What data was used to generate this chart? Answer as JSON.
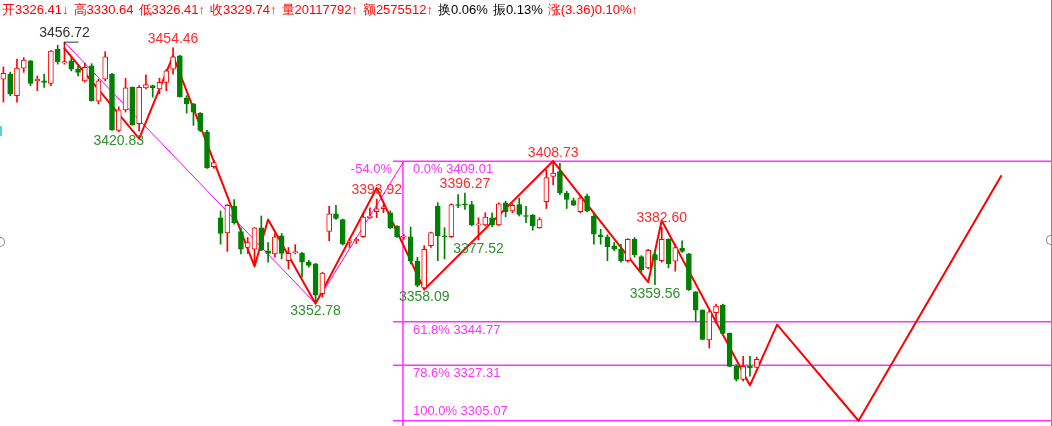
{
  "chart_data": {
    "type": "candlestick",
    "title": "开3326.41↓ 高3330.64 低3326.41↑ 收3329.74↑ 量20117792↑ 额2575512↑ 换0.06% 振0.13% 涨(3.36)0.10%↑",
    "categories": [
      null,
      null,
      null,
      null,
      null,
      null,
      null,
      null,
      null,
      null,
      null,
      null,
      null,
      null,
      null,
      null,
      null,
      null,
      null,
      null,
      null,
      null,
      null,
      null,
      null,
      null,
      null,
      null,
      null,
      null,
      null,
      null,
      null,
      null,
      null,
      null,
      null,
      null,
      null,
      null,
      null,
      null,
      null,
      null,
      null,
      null,
      null,
      null,
      null,
      null,
      null,
      null,
      null,
      null,
      null,
      null,
      null,
      null,
      null,
      null,
      null,
      null,
      null,
      null,
      null,
      null,
      null,
      null,
      null,
      null,
      null,
      null,
      null,
      null,
      null,
      null,
      null,
      null,
      null,
      null,
      null,
      null,
      null,
      null,
      null,
      null,
      null,
      null,
      null,
      null,
      null,
      null,
      null,
      null,
      null,
      null,
      null,
      null,
      null,
      null,
      null,
      null,
      null,
      null,
      null,
      null,
      null,
      null,
      null,
      null,
      null,
      null,
      null,
      null,
      null,
      null,
      null,
      null,
      null,
      null,
      null,
      null,
      null,
      null,
      null,
      null,
      null,
      null,
      null,
      null,
      null,
      null,
      null,
      null,
      null,
      null,
      null,
      null,
      null,
      null,
      null,
      null,
      null,
      null,
      null,
      null,
      null,
      null,
      null,
      null,
      null,
      null,
      null,
      null,
      null
    ],
    "ohlc": [
      [
        3441.9,
        3446.8,
        3432.7,
        3444.2
      ],
      [
        3443.9,
        3444.7,
        3435.2,
        3436.0
      ],
      [
        3435.3,
        3449.9,
        3432.7,
        3446.3
      ],
      [
        3446.3,
        3450.5,
        3444.6,
        3449.5
      ],
      [
        3449.2,
        3449.4,
        3439.3,
        3440.2
      ],
      [
        3441.2,
        3443.2,
        3437.3,
        3441.9
      ],
      [
        3441.2,
        3443.9,
        3438.6,
        3440.6
      ],
      [
        3440.2,
        3453.3,
        3439.3,
        3453.1
      ],
      [
        3453.8,
        3455.5,
        3447.9,
        3448.9
      ],
      [
        3448.4,
        3456.72,
        3447.9,
        3448.9
      ],
      [
        3449.2,
        3450.5,
        3445.2,
        3445.9
      ],
      [
        3445.9,
        3447.2,
        3443.2,
        3444.6
      ],
      [
        3441.2,
        3448.3,
        3440.7,
        3446.6
      ],
      [
        3447.2,
        3448.1,
        3433.1,
        3433.3
      ],
      [
        3433.1,
        3441.9,
        3432.0,
        3441.2
      ],
      [
        3441.9,
        3452.9,
        3441.2,
        3450.8
      ],
      [
        3443.9,
        3444.2,
        3421.4,
        3421.6
      ],
      [
        3421.4,
        3430.8,
        3420.83,
        3429.6
      ],
      [
        3429.6,
        3442.2,
        3428.7,
        3438.4
      ],
      [
        3438.6,
        3438.8,
        3423.4,
        3423.6
      ],
      [
        3424.1,
        3439.3,
        3421.1,
        3438.6
      ],
      [
        3438.4,
        3443.6,
        3438.0,
        3439.7
      ],
      [
        3439.3,
        3439.5,
        3434.7,
        3438.4
      ],
      [
        3438.0,
        3442.3,
        3436.0,
        3440.6
      ],
      [
        3440.6,
        3445.8,
        3437.3,
        3445.2
      ],
      [
        3445.9,
        3454.46,
        3443.9,
        3450.8
      ],
      [
        3451.2,
        3451.4,
        3434.7,
        3434.9
      ],
      [
        3434.4,
        3435.3,
        3428.3,
        3432.0
      ],
      [
        3432.0,
        3432.2,
        3423.4,
        3428.7
      ],
      [
        3428.3,
        3428.5,
        3420.9,
        3421.4
      ],
      [
        3420.8,
        3421.4,
        3406.2,
        3406.4
      ],
      [
        3406.9,
        3409.4,
        3406.2,
        3408.5
      ],
      [
        3386.4,
        3389.1,
        3375.8,
        3380.1
      ],
      [
        3380.3,
        3391.7,
        3372.9,
        3391.4
      ],
      [
        3391.0,
        3393.7,
        3383.8,
        3384.4
      ],
      [
        3380.9,
        3382.4,
        3371.9,
        3373.8
      ],
      [
        3374.5,
        3378.5,
        3372.1,
        3376.5
      ],
      [
        3373.8,
        3382.5,
        3367.9,
        3382.4
      ],
      [
        3382.4,
        3387.1,
        3373.2,
        3373.4
      ],
      [
        3373.2,
        3376.5,
        3368.6,
        3372.1
      ],
      [
        3371.9,
        3380.1,
        3370.6,
        3378.8
      ],
      [
        3379.2,
        3380.1,
        3369.9,
        3372.1
      ],
      [
        3369.2,
        3374.5,
        3365.9,
        3372.1
      ],
      [
        3372.4,
        3375.6,
        3371.9,
        3372.9
      ],
      [
        3372.1,
        3372.5,
        3362.6,
        3368.6
      ],
      [
        3368.6,
        3369.4,
        3366.6,
        3367.3
      ],
      [
        3367.9,
        3368.1,
        3352.78,
        3355.4
      ],
      [
        3356.0,
        3364.6,
        3354.7,
        3364.2
      ],
      [
        3380.9,
        3391.0,
        3377.2,
        3388.0
      ],
      [
        3388.0,
        3391.4,
        3385.7,
        3386.1
      ],
      [
        3385.7,
        3385.9,
        3375.5,
        3375.8
      ],
      [
        3376.5,
        3378.2,
        3374.5,
        3377.2
      ],
      [
        3377.2,
        3378.5,
        3376.1,
        3377.8
      ],
      [
        3378.8,
        3388.4,
        3378.5,
        3386.7
      ],
      [
        3386.4,
        3390.4,
        3386.1,
        3387.1
      ],
      [
        3388.8,
        3393.92,
        3386.4,
        3390.0
      ],
      [
        3390.0,
        3391.6,
        3388.4,
        3390.8
      ],
      [
        3388.4,
        3389.2,
        3382.0,
        3382.4
      ],
      [
        3383.1,
        3383.3,
        3378.5,
        3378.7
      ],
      [
        3378.6,
        3379.7,
        3377.7,
        3378.9
      ],
      [
        3378.8,
        3382.7,
        3367.9,
        3369.0
      ],
      [
        3369.0,
        3370.6,
        3358.7,
        3359.3
      ],
      [
        3358.3,
        3375.2,
        3358.09,
        3373.8
      ],
      [
        3375.2,
        3380.7,
        3374.5,
        3380.5
      ],
      [
        3391.0,
        3392.4,
        3369.2,
        3379.2
      ],
      [
        3379.2,
        3382.4,
        3369.9,
        3378.8
      ],
      [
        3378.8,
        3392.0,
        3378.5,
        3391.7
      ],
      [
        3391.7,
        3395.7,
        3390.4,
        3391.3
      ],
      [
        3392.0,
        3396.27,
        3389.7,
        3391.4
      ],
      [
        3391.7,
        3393.0,
        3383.1,
        3383.5
      ],
      [
        3383.5,
        3386.4,
        3377.52,
        3384.0
      ],
      [
        3383.5,
        3388.4,
        3383.1,
        3386.7
      ],
      [
        3386.4,
        3388.4,
        3382.8,
        3383.5
      ],
      [
        3383.5,
        3392.4,
        3383.2,
        3392.0
      ],
      [
        3392.4,
        3393.0,
        3386.8,
        3388.8
      ],
      [
        3389.1,
        3392.0,
        3388.4,
        3391.4
      ],
      [
        3391.7,
        3394.3,
        3387.1,
        3387.7
      ],
      [
        3387.3,
        3391.0,
        3384.4,
        3386.9
      ],
      [
        3387.5,
        3387.7,
        3381.4,
        3383.1
      ],
      [
        3382.4,
        3386.4,
        3382.2,
        3385.7
      ],
      [
        3392.8,
        3405.6,
        3390.1,
        3402.5
      ],
      [
        3402.9,
        3408.73,
        3399.6,
        3404.3
      ],
      [
        3404.9,
        3408.2,
        3395.7,
        3396.3
      ],
      [
        3396.3,
        3397.0,
        3390.1,
        3393.7
      ],
      [
        3393.3,
        3394.3,
        3391.2,
        3391.4
      ],
      [
        3388.8,
        3395.5,
        3388.4,
        3394.3
      ],
      [
        3395.1,
        3395.9,
        3388.8,
        3389.1
      ],
      [
        3387.1,
        3388.4,
        3375.8,
        3379.8
      ],
      [
        3379.6,
        3381.8,
        3375.8,
        3378.8
      ],
      [
        3378.8,
        3379.6,
        3369.2,
        3374.8
      ],
      [
        3375.2,
        3376.5,
        3373.2,
        3373.8
      ],
      [
        3373.8,
        3375.8,
        3368.6,
        3369.2
      ],
      [
        3369.2,
        3378.0,
        3368.6,
        3377.8
      ],
      [
        3377.8,
        3378.5,
        3370.6,
        3371.6
      ],
      [
        3370.8,
        3371.2,
        3364.6,
        3365.5
      ],
      [
        3366.3,
        3373.8,
        3365.9,
        3373.4
      ],
      [
        3371.6,
        3373.4,
        3359.56,
        3369.5
      ],
      [
        3369.2,
        3382.6,
        3368.6,
        3377.8
      ],
      [
        3377.8,
        3378.0,
        3366.3,
        3367.9
      ],
      [
        3369.0,
        3375.8,
        3365.0,
        3374.5
      ],
      [
        3374.2,
        3377.2,
        3372.5,
        3372.9
      ],
      [
        3371.9,
        3372.1,
        3357.3,
        3357.6
      ],
      [
        3356.7,
        3356.9,
        3344.8,
        3349.4
      ],
      [
        3349.4,
        3349.6,
        3337.5,
        3337.7
      ],
      [
        3337.5,
        3349.4,
        3334.2,
        3348.7
      ],
      [
        3348.4,
        3351.8,
        3344.1,
        3351.0
      ],
      [
        3351.4,
        3351.8,
        3339.9,
        3340.1
      ],
      [
        3340.1,
        3340.3,
        3326.7,
        3326.9
      ],
      [
        3326.9,
        3327.6,
        3321.0,
        3321.7
      ],
      [
        3321.7,
        3330.9,
        3321.0,
        3326.9
      ],
      [
        3326.9,
        3330.9,
        3323.0,
        3326.3
      ],
      [
        3326.41,
        3330.64,
        3326.41,
        3329.74
      ],
      null,
      null,
      null,
      null,
      null,
      null,
      null,
      null,
      null,
      null,
      null,
      null,
      null,
      null,
      null,
      null,
      null,
      null,
      null,
      null,
      null,
      null,
      null,
      null,
      null,
      null,
      null,
      null,
      null,
      null,
      null,
      null,
      null,
      null,
      null,
      null,
      null,
      null,
      null,
      null,
      null,
      null,
      null
    ],
    "colors": [
      "#ff0000",
      "#008000",
      "#ff0000",
      "#ff0000",
      "#008000",
      "#ff0000",
      "#008000",
      "#ff0000",
      "#008000",
      "#ff0000",
      "#008000",
      "#008000",
      "#ff0000",
      "#008000",
      "#ff0000",
      "#ff0000",
      "#008000",
      "#ff0000",
      "#ff0000",
      "#008000",
      "#ff0000",
      "#ff0000",
      "#008000",
      "#ff0000",
      "#ff0000",
      "#ff0000",
      "#008000",
      "#008000",
      "#008000",
      "#008000",
      "#008000",
      "#ff0000",
      "#008000",
      "#ff0000",
      "#008000",
      "#008000",
      "#ff0000",
      "#ff0000",
      "#008000",
      "#008000",
      "#ff0000",
      "#008000",
      "#ff0000",
      "#ff0000",
      "#008000",
      "#008000",
      "#008000",
      "#ff0000",
      "#ff0000",
      "#008000",
      "#008000",
      "#ff0000",
      "#ff0000",
      "#ff0000",
      "#ff0000",
      "#ff0000",
      "#ff0000",
      "#008000",
      "#008000",
      "#ff0000",
      "#008000",
      "#008000",
      "#ff0000",
      "#ff0000",
      "#008000",
      "#008000",
      "#ff0000",
      "#008000",
      "#008000",
      "#008000",
      "#ff0000",
      "#ff0000",
      "#008000",
      "#ff0000",
      "#008000",
      "#ff0000",
      "#008000",
      "#008000",
      "#008000",
      "#ff0000",
      "#ff0000",
      "#ff0000",
      "#008000",
      "#008000",
      "#008000",
      "#ff0000",
      "#008000",
      "#008000",
      "#008000",
      "#008000",
      "#008000",
      "#008000",
      "#ff0000",
      "#008000",
      "#008000",
      "#ff0000",
      "#008000",
      "#ff0000",
      "#008000",
      "#ff0000",
      "#008000",
      "#008000",
      "#008000",
      "#008000",
      "#ff0000",
      "#ff0000",
      "#008000",
      "#008000",
      "#008000",
      "#ff0000",
      "#008000",
      "#ff0000",
      null,
      null,
      null,
      null,
      null,
      null,
      null,
      null,
      null,
      null,
      null,
      null,
      null,
      null,
      null,
      null,
      null,
      null,
      null,
      null,
      null,
      null,
      null,
      null,
      null,
      null,
      null,
      null,
      null,
      null,
      null,
      null,
      null,
      null,
      null,
      null,
      null,
      null,
      null,
      null,
      null,
      null,
      null
    ],
    "series": [
      {
        "type": "line",
        "color": "#ff0000",
        "values": [
          null,
          null,
          null,
          null,
          null,
          null,
          null,
          null,
          null,
          3454.2,
          null,
          null,
          null,
          null,
          null,
          null,
          null,
          null,
          null,
          null,
          3418.1,
          null,
          null,
          null,
          null,
          3451.2,
          null,
          null,
          null,
          null,
          null,
          null,
          null,
          null,
          null,
          null,
          null,
          3366.9,
          null,
          3385.7,
          null,
          null,
          null,
          null,
          null,
          null,
          3352.0,
          null,
          null,
          null,
          null,
          null,
          null,
          null,
          null,
          3398.3,
          null,
          null,
          null,
          null,
          null,
          null,
          3357.6,
          null,
          null,
          null,
          null,
          null,
          null,
          null,
          null,
          null,
          null,
          null,
          null,
          null,
          null,
          null,
          null,
          null,
          null,
          3409.1,
          null,
          null,
          null,
          null,
          null,
          null,
          null,
          null,
          null,
          null,
          null,
          null,
          null,
          3360.6,
          null,
          3385.3,
          null,
          null,
          null,
          null,
          null,
          null,
          null,
          null,
          null,
          null,
          null,
          null,
          3319.3,
          null,
          null,
          null,
          3343.6,
          null,
          null,
          null,
          null,
          null,
          null,
          null,
          null,
          null,
          null,
          null,
          3305.1,
          null,
          null,
          null,
          null,
          null,
          null,
          null,
          null,
          null,
          null,
          null,
          null,
          null,
          null,
          null,
          null,
          null,
          null,
          null,
          null,
          3403.1,
          null,
          null,
          null,
          null,
          null,
          null,
          null
        ]
      },
      {
        "type": "line",
        "color": "#ff00ff",
        "values": [
          null,
          null,
          null,
          null,
          null,
          null,
          null,
          null,
          null,
          3456.7,
          null,
          null,
          null,
          null,
          null,
          null,
          null,
          null,
          null,
          null,
          null,
          null,
          null,
          null,
          null,
          null,
          null,
          null,
          null,
          null,
          null,
          null,
          null,
          null,
          null,
          null,
          null,
          null,
          null,
          null,
          null,
          null,
          null,
          null,
          null,
          null,
          3352.0,
          null,
          null,
          null,
          null,
          null,
          null,
          null,
          null,
          null,
          null,
          null,
          null,
          null,
          null,
          null,
          null,
          null,
          null,
          null,
          null,
          null,
          null,
          null,
          null,
          null,
          null,
          null,
          null,
          null,
          null,
          null,
          null,
          null,
          null,
          null,
          null,
          null,
          null,
          null,
          null,
          null,
          null,
          null,
          null,
          null,
          null,
          null,
          null,
          null,
          null,
          null,
          null,
          null,
          null,
          null,
          null,
          null,
          null,
          null,
          null,
          null,
          null,
          null,
          null,
          null,
          null,
          null,
          null,
          null,
          null,
          null,
          null,
          null,
          null,
          null,
          null,
          null,
          null,
          null,
          null,
          null,
          null,
          null,
          null,
          null,
          null,
          null,
          null,
          null,
          null,
          null,
          null,
          null,
          null,
          null,
          null,
          null,
          null,
          null,
          null,
          null,
          null,
          null,
          null,
          null,
          null,
          null,
          null
        ]
      },
      {
        "type": "line",
        "color": "#ff00ff",
        "values": [
          null,
          null,
          null,
          null,
          null,
          null,
          null,
          null,
          null,
          null,
          null,
          null,
          null,
          null,
          null,
          null,
          null,
          null,
          null,
          null,
          null,
          null,
          null,
          null,
          null,
          null,
          null,
          null,
          null,
          null,
          null,
          null,
          null,
          null,
          null,
          null,
          null,
          null,
          null,
          null,
          null,
          null,
          null,
          null,
          null,
          null,
          3352.0,
          null,
          null,
          null,
          null,
          null,
          null,
          null,
          null,
          null,
          null,
          null,
          null,
          3409.0,
          null,
          null,
          null,
          null,
          null,
          null,
          null,
          null,
          null,
          null,
          null,
          null,
          null,
          null,
          null,
          null,
          null,
          null,
          null,
          null,
          null,
          null,
          null,
          null,
          null,
          null,
          null,
          null,
          null,
          null,
          null,
          null,
          null,
          null,
          null,
          null,
          null,
          null,
          null,
          null,
          null,
          null,
          null,
          null,
          null,
          null,
          null,
          null,
          null,
          null,
          null,
          null,
          null,
          null,
          null,
          null,
          null,
          null,
          null,
          null,
          null,
          null,
          null,
          null,
          null,
          null,
          null,
          null,
          null,
          null,
          null,
          null,
          null,
          null,
          null,
          null,
          null,
          null,
          null,
          null,
          null,
          null,
          null,
          null,
          null,
          null,
          null,
          null,
          null,
          null,
          null,
          null,
          null,
          null,
          null
        ]
      }
    ],
    "ylim": [
      3303,
      3473.6
    ],
    "tick_labels": false,
    "ref_lines": [
      {
        "axis": "y",
        "value": 3409.01,
        "label": "0.0% 3409.01",
        "color": "#ff33ff"
      },
      {
        "axis": "y",
        "value": 3344.77,
        "label": "61.8% 3344.77",
        "color": "#ff33ff"
      },
      {
        "axis": "y",
        "value": 3327.31,
        "label": "78.6% 3327.31",
        "color": "#ff33ff"
      },
      {
        "axis": "y",
        "value": 3305.07,
        "label": "100.0% 3305.07",
        "color": "#ff33ff"
      }
    ],
    "annotations": [
      "-54.0%",
      {
        "text": "3456.72",
        "y": 3456.72
      },
      {
        "text": "3454.46",
        "y": 3454.46
      },
      {
        "text": "3420.83",
        "y": 3420.83
      },
      {
        "text": "3352.78",
        "y": 3352.78
      },
      {
        "text": "3393.92",
        "y": 3393.92
      },
      {
        "text": "3358.09",
        "y": 3358.09
      },
      {
        "text": "3396.27",
        "y": 3396.27
      },
      {
        "text": "3377.52",
        "y": 3377.52
      },
      {
        "text": "3408.73",
        "y": 3408.73
      },
      {
        "text": "3382.60",
        "y": 3382.6
      },
      {
        "text": "3359.56",
        "y": 3359.56
      }
    ]
  }
}
